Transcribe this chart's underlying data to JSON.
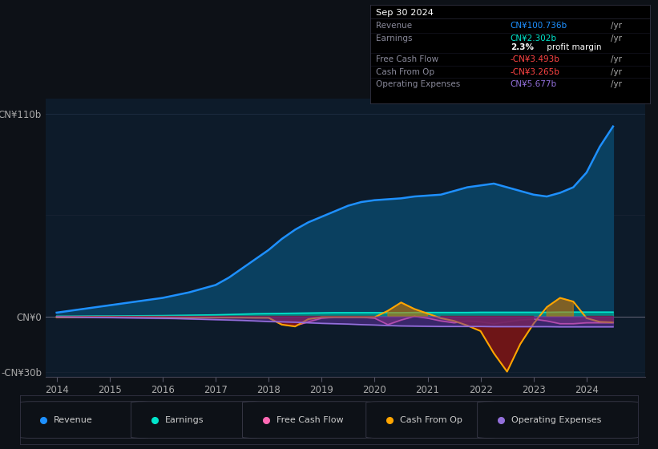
{
  "bg_color": "#0d1117",
  "plot_bg_color": "#0d1b2a",
  "ylim": [
    -33,
    118
  ],
  "legend_items": [
    {
      "label": "Revenue",
      "color": "#1e90ff"
    },
    {
      "label": "Earnings",
      "color": "#00e5cc"
    },
    {
      "label": "Free Cash Flow",
      "color": "#ff69b4"
    },
    {
      "label": "Cash From Op",
      "color": "#ffa500"
    },
    {
      "label": "Operating Expenses",
      "color": "#9370db"
    }
  ]
}
